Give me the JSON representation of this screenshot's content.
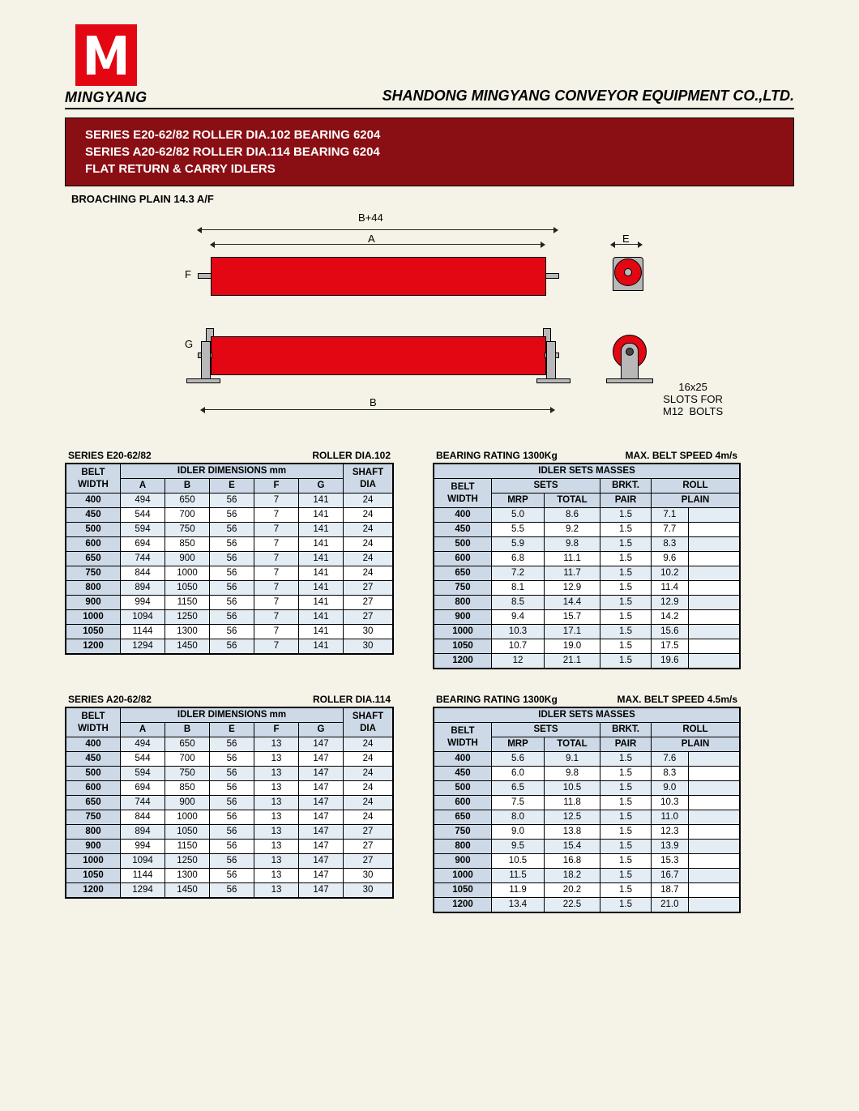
{
  "header": {
    "brand": "MINGYANG",
    "company": "SHANDONG MINGYANG CONVEYOR EQUIPMENT CO.,LTD."
  },
  "title": {
    "line1": "SERIES E20-62/82 ROLLER DIA.102 BEARING 6204",
    "line2": "SERIES A20-62/82 ROLLER DIA.114 BEARING 6204",
    "line3": "FLAT RETURN & CARRY IDLERS"
  },
  "subheading": "BROACHING PLAIN 14.3 A/F",
  "diagram": {
    "labels": {
      "B44": "B+44",
      "A": "A",
      "E": "E",
      "F": "F",
      "G": "G",
      "B": "B"
    },
    "slot_note": "16x25\nSLOTS FOR\nM12  BOLTS",
    "roller_color": "#e30613",
    "bracket_color": "#b8b8b8"
  },
  "tableSet1": {
    "dims": {
      "caption_left": "SERIES E20-62/82",
      "caption_right": "ROLLER DIA.102",
      "h_belt": "BELT WIDTH",
      "h_group": "IDLER DIMENSIONS mm",
      "cols": [
        "A",
        "B",
        "E",
        "F",
        "G"
      ],
      "h_shaft": "SHAFT DIA",
      "rows": [
        [
          "400",
          "494",
          "650",
          "56",
          "7",
          "141",
          "24"
        ],
        [
          "450",
          "544",
          "700",
          "56",
          "7",
          "141",
          "24"
        ],
        [
          "500",
          "594",
          "750",
          "56",
          "7",
          "141",
          "24"
        ],
        [
          "600",
          "694",
          "850",
          "56",
          "7",
          "141",
          "24"
        ],
        [
          "650",
          "744",
          "900",
          "56",
          "7",
          "141",
          "24"
        ],
        [
          "750",
          "844",
          "1000",
          "56",
          "7",
          "141",
          "24"
        ],
        [
          "800",
          "894",
          "1050",
          "56",
          "7",
          "141",
          "27"
        ],
        [
          "900",
          "994",
          "1150",
          "56",
          "7",
          "141",
          "27"
        ],
        [
          "1000",
          "1094",
          "1250",
          "56",
          "7",
          "141",
          "27"
        ],
        [
          "1050",
          "1144",
          "1300",
          "56",
          "7",
          "141",
          "30"
        ],
        [
          "1200",
          "1294",
          "1450",
          "56",
          "7",
          "141",
          "30"
        ]
      ]
    },
    "mass": {
      "caption_left": "BEARING RATING 1300Kg",
      "caption_right": "MAX. BELT SPEED 4m/s",
      "h_top": "IDLER SETS MASSES",
      "h_belt": "BELT WIDTH",
      "h_sets": "SETS",
      "h_mrp": "MRP",
      "h_total": "TOTAL",
      "h_brkt": "BRKT.",
      "h_pair": "PAIR",
      "h_roll": "ROLL",
      "h_plain": "PLAIN",
      "rows": [
        [
          "400",
          "5.0",
          "8.6",
          "1.5",
          "7.1"
        ],
        [
          "450",
          "5.5",
          "9.2",
          "1.5",
          "7.7"
        ],
        [
          "500",
          "5.9",
          "9.8",
          "1.5",
          "8.3"
        ],
        [
          "600",
          "6.8",
          "11.1",
          "1.5",
          "9.6"
        ],
        [
          "650",
          "7.2",
          "11.7",
          "1.5",
          "10.2"
        ],
        [
          "750",
          "8.1",
          "12.9",
          "1.5",
          "11.4"
        ],
        [
          "800",
          "8.5",
          "14.4",
          "1.5",
          "12.9"
        ],
        [
          "900",
          "9.4",
          "15.7",
          "1.5",
          "14.2"
        ],
        [
          "1000",
          "10.3",
          "17.1",
          "1.5",
          "15.6"
        ],
        [
          "1050",
          "10.7",
          "19.0",
          "1.5",
          "17.5"
        ],
        [
          "1200",
          "12",
          "21.1",
          "1.5",
          "19.6"
        ]
      ]
    }
  },
  "tableSet2": {
    "dims": {
      "caption_left": "SERIES A20-62/82",
      "caption_right": "ROLLER DIA.114",
      "h_belt": "BELT WIDTH",
      "h_group": "IDLER DIMENSIONS mm",
      "cols": [
        "A",
        "B",
        "E",
        "F",
        "G"
      ],
      "h_shaft": "SHAFT DIA",
      "rows": [
        [
          "400",
          "494",
          "650",
          "56",
          "13",
          "147",
          "24"
        ],
        [
          "450",
          "544",
          "700",
          "56",
          "13",
          "147",
          "24"
        ],
        [
          "500",
          "594",
          "750",
          "56",
          "13",
          "147",
          "24"
        ],
        [
          "600",
          "694",
          "850",
          "56",
          "13",
          "147",
          "24"
        ],
        [
          "650",
          "744",
          "900",
          "56",
          "13",
          "147",
          "24"
        ],
        [
          "750",
          "844",
          "1000",
          "56",
          "13",
          "147",
          "24"
        ],
        [
          "800",
          "894",
          "1050",
          "56",
          "13",
          "147",
          "27"
        ],
        [
          "900",
          "994",
          "1150",
          "56",
          "13",
          "147",
          "27"
        ],
        [
          "1000",
          "1094",
          "1250",
          "56",
          "13",
          "147",
          "27"
        ],
        [
          "1050",
          "1144",
          "1300",
          "56",
          "13",
          "147",
          "30"
        ],
        [
          "1200",
          "1294",
          "1450",
          "56",
          "13",
          "147",
          "30"
        ]
      ]
    },
    "mass": {
      "caption_left": "BEARING RATING 1300Kg",
      "caption_right": "MAX. BELT SPEED 4.5m/s",
      "h_top": "IDLER SETS MASSES",
      "h_belt": "BELT WIDTH",
      "h_sets": "SETS",
      "h_mrp": "MRP",
      "h_total": "TOTAL",
      "h_brkt": "BRKT.",
      "h_pair": "PAIR",
      "h_roll": "ROLL",
      "h_plain": "PLAIN",
      "rows": [
        [
          "400",
          "5.6",
          "9.1",
          "1.5",
          "7.6"
        ],
        [
          "450",
          "6.0",
          "9.8",
          "1.5",
          "8.3"
        ],
        [
          "500",
          "6.5",
          "10.5",
          "1.5",
          "9.0"
        ],
        [
          "600",
          "7.5",
          "11.8",
          "1.5",
          "10.3"
        ],
        [
          "650",
          "8.0",
          "12.5",
          "1.5",
          "11.0"
        ],
        [
          "750",
          "9.0",
          "13.8",
          "1.5",
          "12.3"
        ],
        [
          "800",
          "9.5",
          "15.4",
          "1.5",
          "13.9"
        ],
        [
          "900",
          "10.5",
          "16.8",
          "1.5",
          "15.3"
        ],
        [
          "1000",
          "11.5",
          "18.2",
          "1.5",
          "16.7"
        ],
        [
          "1050",
          "11.9",
          "20.2",
          "1.5",
          "18.7"
        ],
        [
          "1200",
          "13.4",
          "22.5",
          "1.5",
          "21.0"
        ]
      ]
    }
  },
  "colors": {
    "brand_red": "#e30613",
    "title_bg": "#8a0f14",
    "th_bg": "#cdd9e6",
    "row_alt": "#e4ecf4"
  }
}
